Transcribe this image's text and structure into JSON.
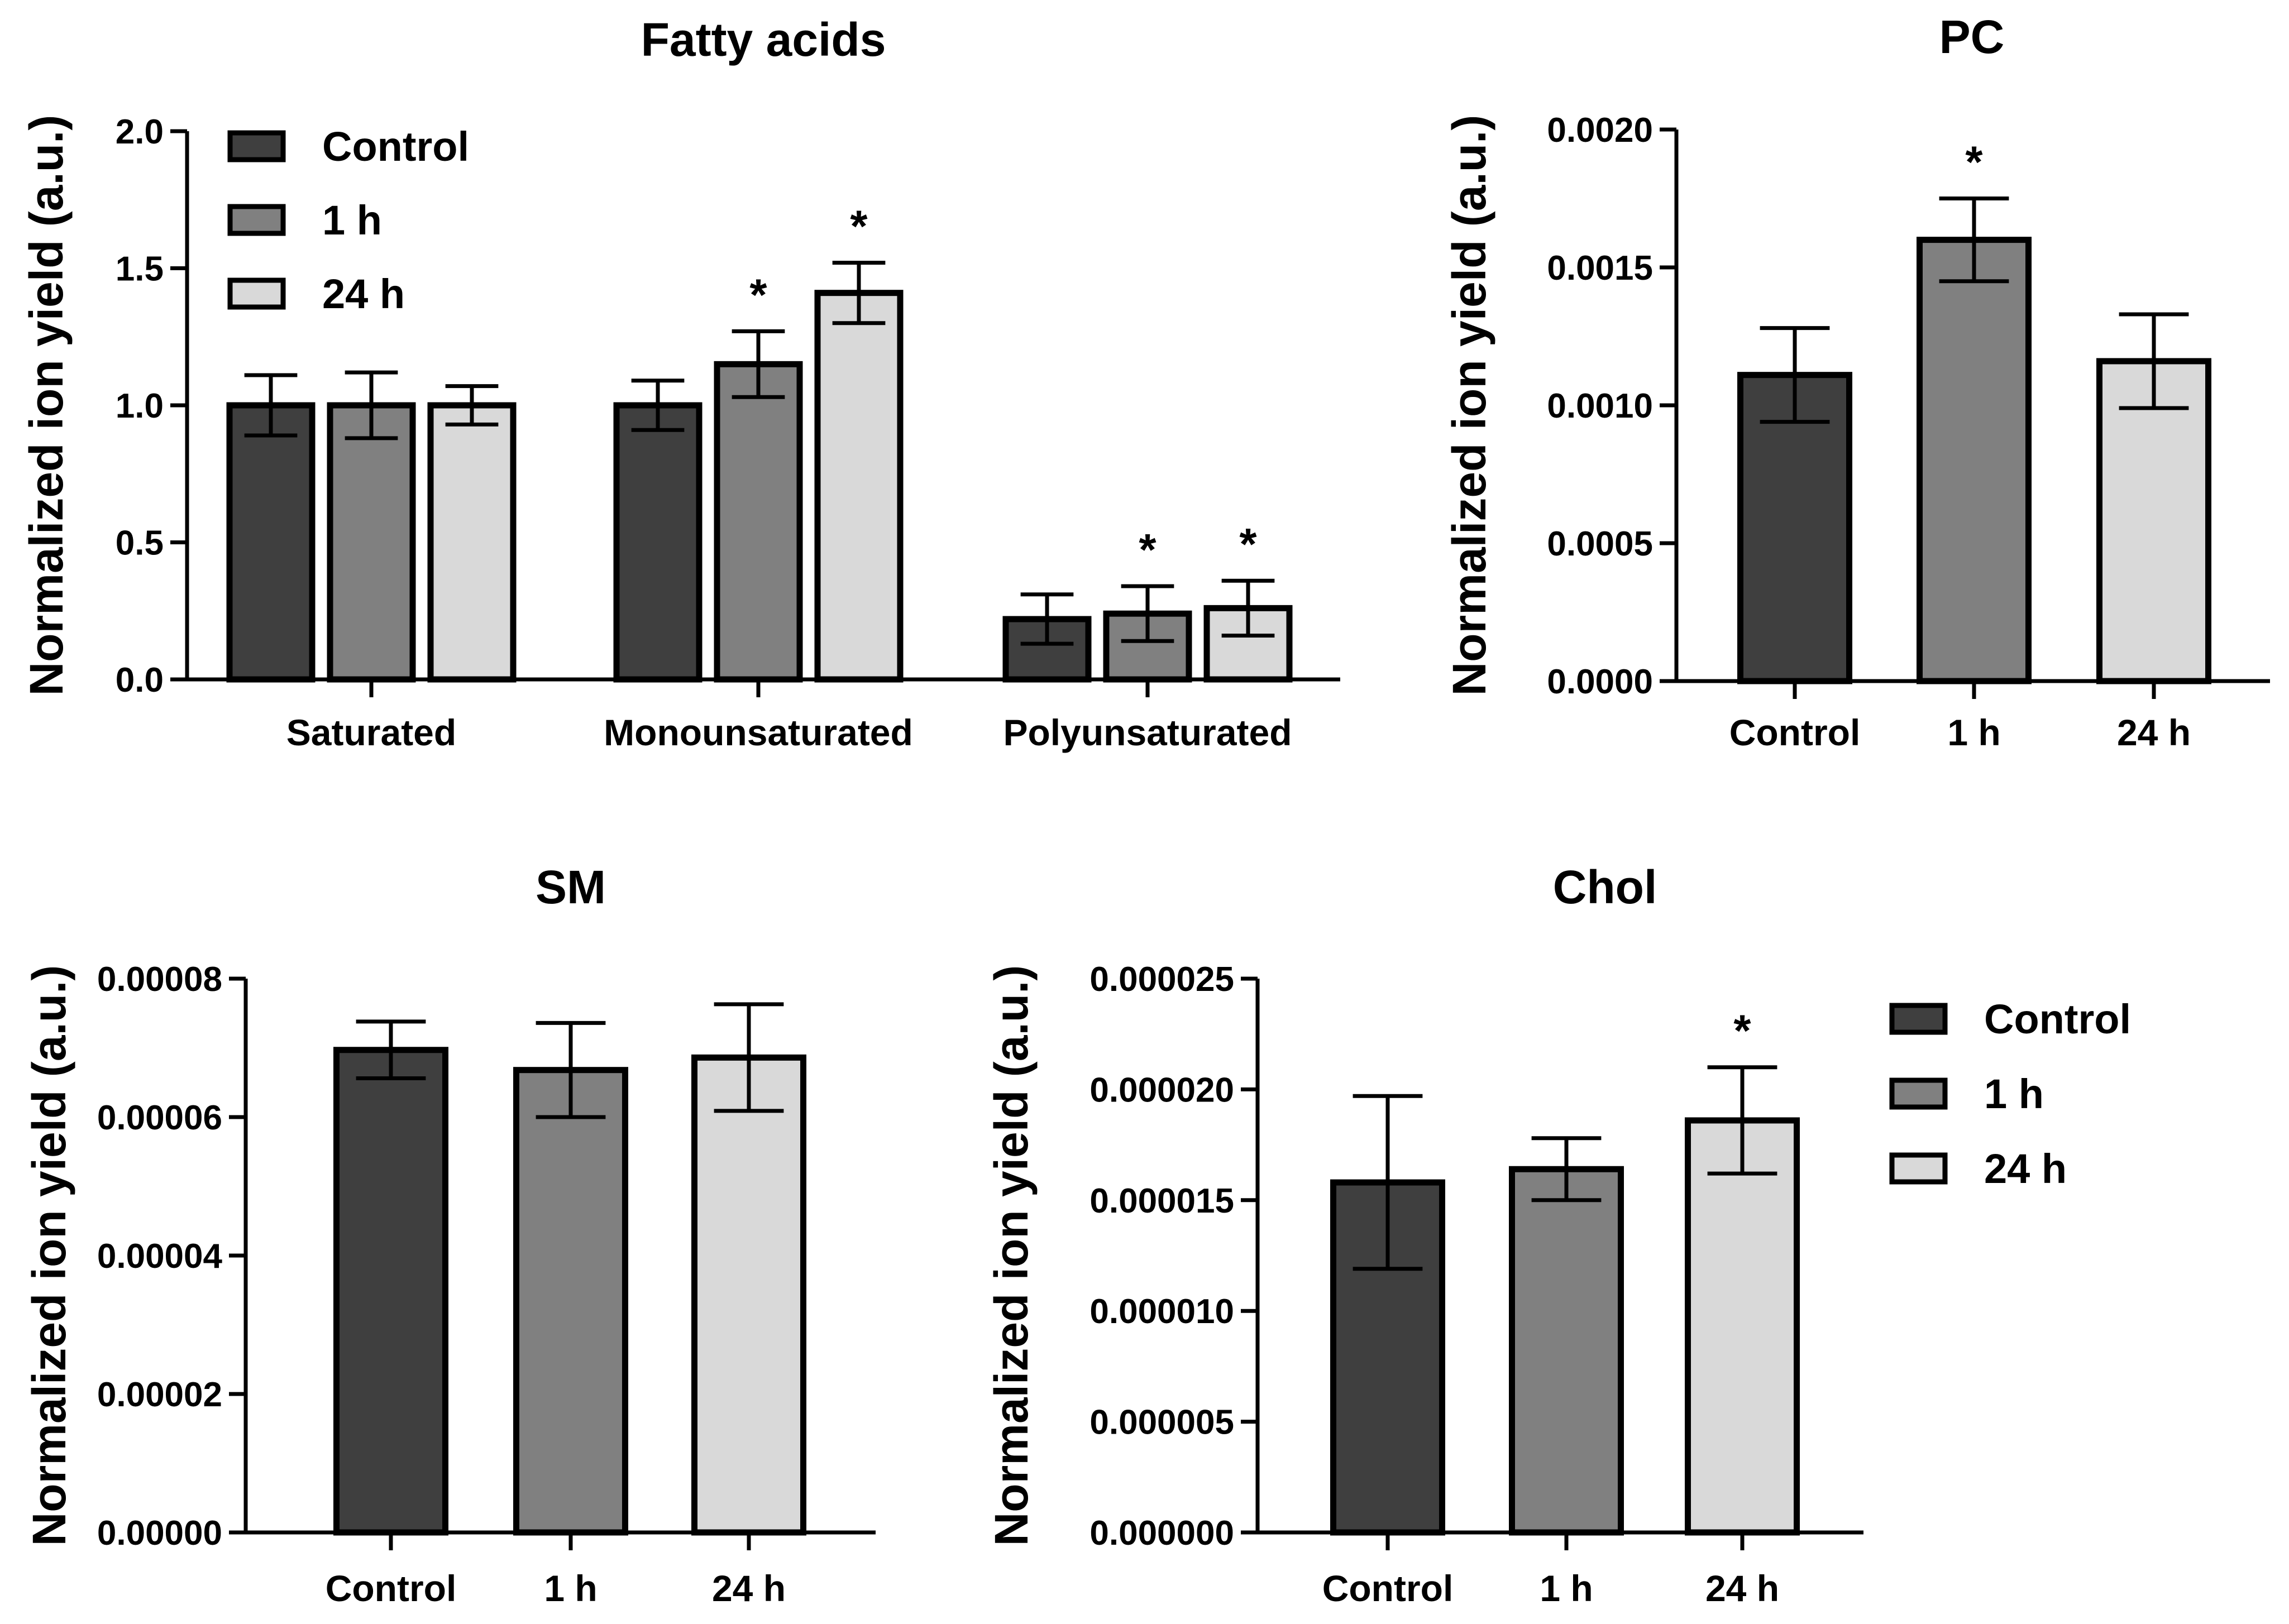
{
  "colors": {
    "Control": "#3f3f3f",
    "1 h": "#808080",
    "24 h": "#d9d9d9",
    "ink": "#000000"
  },
  "legend_labels": [
    "Control",
    "1 h",
    "24 h"
  ],
  "chart_data": [
    {
      "id": "fatty",
      "type": "bar",
      "title": "Fatty acids",
      "ylabel": "Normalized ion yield (a.u.)",
      "xlabel": "",
      "ylim": [
        0,
        2.0
      ],
      "yticks": [
        "0.0",
        "0.5",
        "1.0",
        "1.5",
        "2.0"
      ],
      "categories": [
        "Saturated",
        "Monounsaturated",
        "Polyunsaturated"
      ],
      "legend": "top-left",
      "series": [
        {
          "name": "Control",
          "values": [
            1.0,
            1.0,
            0.22
          ],
          "errors": [
            0.11,
            0.09,
            0.09
          ],
          "marks": [
            "",
            "",
            ""
          ]
        },
        {
          "name": "1 h",
          "values": [
            1.0,
            1.15,
            0.24
          ],
          "errors": [
            0.12,
            0.12,
            0.1
          ],
          "marks": [
            "",
            "*",
            "*"
          ]
        },
        {
          "name": "24 h",
          "values": [
            1.0,
            1.41,
            0.26
          ],
          "errors": [
            0.07,
            0.11,
            0.1
          ],
          "marks": [
            "",
            "*",
            "*"
          ]
        }
      ]
    },
    {
      "id": "pc",
      "type": "bar",
      "title": "PC",
      "ylabel": "Normalized ion yield (a.u.)",
      "xlabel": "",
      "ylim": [
        0,
        0.002
      ],
      "yticks": [
        "0.0000",
        "0.0005",
        "0.0010",
        "0.0015",
        "0.0020"
      ],
      "categories": [
        "Control",
        "1 h",
        "24 h"
      ],
      "values": [
        0.00111,
        0.0016,
        0.00116
      ],
      "errors": [
        0.00017,
        0.00015,
        0.00017
      ],
      "marks": [
        "",
        "*",
        ""
      ]
    },
    {
      "id": "sm",
      "type": "bar",
      "title": "SM",
      "ylabel": "Normalized ion yield (a.u.)",
      "xlabel": "",
      "ylim": [
        0,
        8e-05
      ],
      "yticks": [
        "0.00000",
        "0.00002",
        "0.00004",
        "0.00006",
        "0.00008"
      ],
      "categories": [
        "Control",
        "1 h",
        "24 h"
      ],
      "values": [
        6.97e-05,
        6.68e-05,
        6.86e-05
      ],
      "errors": [
        4.1e-06,
        6.8e-06,
        7.7e-06
      ],
      "marks": [
        "",
        "",
        ""
      ]
    },
    {
      "id": "chol",
      "type": "bar",
      "title": "Chol",
      "ylabel": "Normalized ion yield (a.u.)",
      "xlabel": "",
      "ylim": [
        0,
        2.5e-05
      ],
      "yticks": [
        "0.000000",
        "0.000005",
        "0.000010",
        "0.000015",
        "0.000020",
        "0.000025"
      ],
      "categories": [
        "Control",
        "1 h",
        "24 h"
      ],
      "values": [
        1.58e-05,
        1.64e-05,
        1.86e-05
      ],
      "errors": [
        3.9e-06,
        1.4e-06,
        2.4e-06
      ],
      "marks": [
        "",
        "",
        "*"
      ],
      "legend": "right"
    }
  ]
}
